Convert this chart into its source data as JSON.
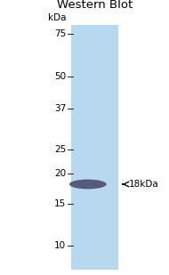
{
  "title": "Western Blot",
  "background_color": "#ffffff",
  "gel_color": "#b8d8f0",
  "kda_labels": [
    75,
    50,
    37,
    25,
    20,
    15,
    10
  ],
  "band_color": "#4a4a6a",
  "arrow_label": "18kDa",
  "band_kda": 18,
  "title_fontsize": 9.5,
  "tick_fontsize": 7.5,
  "arrow_fontsize": 7.5,
  "y_min": 8,
  "y_max": 82,
  "log_min": 8,
  "log_max": 82
}
